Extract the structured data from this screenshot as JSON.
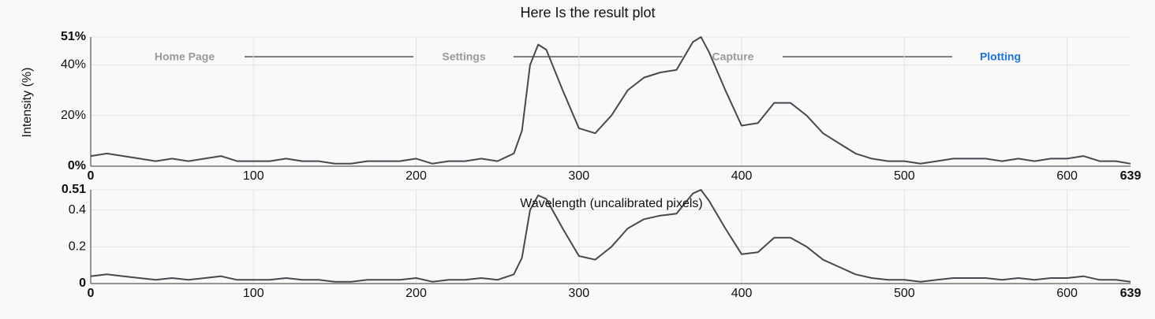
{
  "nav": {
    "steps": [
      "Home Page",
      "Settings",
      "Capture",
      "Plotting"
    ]
  },
  "chart_data": [
    {
      "type": "line",
      "title": "Here Is the result plot",
      "y_label": "Intensity (%)",
      "x_label": "Wavelength (uncalibrated pixels)",
      "x": [
        0,
        10,
        20,
        30,
        40,
        50,
        60,
        70,
        80,
        90,
        100,
        110,
        120,
        130,
        140,
        150,
        160,
        170,
        180,
        190,
        200,
        210,
        220,
        230,
        240,
        250,
        260,
        265,
        270,
        275,
        280,
        290,
        300,
        310,
        320,
        330,
        340,
        350,
        360,
        370,
        375,
        380,
        390,
        400,
        410,
        420,
        430,
        440,
        450,
        460,
        470,
        480,
        490,
        500,
        510,
        520,
        530,
        540,
        550,
        560,
        570,
        580,
        590,
        600,
        610,
        620,
        630,
        639
      ],
      "series": [
        {
          "name": "Intensity",
          "color": "#444a50",
          "values": [
            4,
            5,
            4,
            3,
            2,
            3,
            2,
            3,
            4,
            2,
            2,
            2,
            3,
            2,
            2,
            1,
            1,
            2,
            2,
            2,
            3,
            1,
            2,
            2,
            3,
            2,
            5,
            14,
            40,
            48,
            46,
            30,
            15,
            13,
            20,
            30,
            35,
            37,
            38,
            49,
            51,
            45,
            30,
            16,
            17,
            25,
            25,
            20,
            13,
            9,
            5,
            3,
            2,
            2,
            1,
            2,
            3,
            3,
            3,
            2,
            3,
            2,
            3,
            3,
            4,
            2,
            2,
            1
          ]
        }
      ],
      "xlim": [
        0,
        639
      ],
      "xticks": [
        0,
        100,
        200,
        300,
        400,
        500,
        600,
        639
      ],
      "ylim": [
        0,
        51
      ],
      "yticks": [
        {
          "value": 0,
          "label": "0%"
        },
        {
          "value": 20,
          "label": "20%"
        },
        {
          "value": 40,
          "label": "40%"
        },
        {
          "value": 51,
          "label": "51%"
        }
      ],
      "grid": true
    },
    {
      "type": "line",
      "x": [
        0,
        10,
        20,
        30,
        40,
        50,
        60,
        70,
        80,
        90,
        100,
        110,
        120,
        130,
        140,
        150,
        160,
        170,
        180,
        190,
        200,
        210,
        220,
        230,
        240,
        250,
        260,
        265,
        270,
        275,
        280,
        290,
        300,
        310,
        320,
        330,
        340,
        350,
        360,
        370,
        375,
        380,
        390,
        400,
        410,
        420,
        430,
        440,
        450,
        460,
        470,
        480,
        490,
        500,
        510,
        520,
        530,
        540,
        550,
        560,
        570,
        580,
        590,
        600,
        610,
        620,
        630,
        639
      ],
      "series": [
        {
          "name": "Intensity",
          "color": "#444a50",
          "values": [
            0.04,
            0.05,
            0.04,
            0.03,
            0.02,
            0.03,
            0.02,
            0.03,
            0.04,
            0.02,
            0.02,
            0.02,
            0.03,
            0.02,
            0.02,
            0.01,
            0.01,
            0.02,
            0.02,
            0.02,
            0.03,
            0.01,
            0.02,
            0.02,
            0.03,
            0.02,
            0.05,
            0.14,
            0.4,
            0.48,
            0.46,
            0.3,
            0.15,
            0.13,
            0.2,
            0.3,
            0.35,
            0.37,
            0.38,
            0.49,
            0.51,
            0.45,
            0.3,
            0.16,
            0.17,
            0.25,
            0.25,
            0.2,
            0.13,
            0.09,
            0.05,
            0.03,
            0.02,
            0.02,
            0.01,
            0.02,
            0.03,
            0.03,
            0.03,
            0.02,
            0.03,
            0.02,
            0.03,
            0.03,
            0.04,
            0.02,
            0.02,
            0.01
          ]
        }
      ],
      "xlim": [
        0,
        639
      ],
      "xticks": [
        0,
        100,
        200,
        300,
        400,
        500,
        600,
        639
      ],
      "ylim": [
        0,
        0.51
      ],
      "yticks": [
        0,
        0.2,
        0.4,
        0.51
      ],
      "grid": true
    }
  ]
}
